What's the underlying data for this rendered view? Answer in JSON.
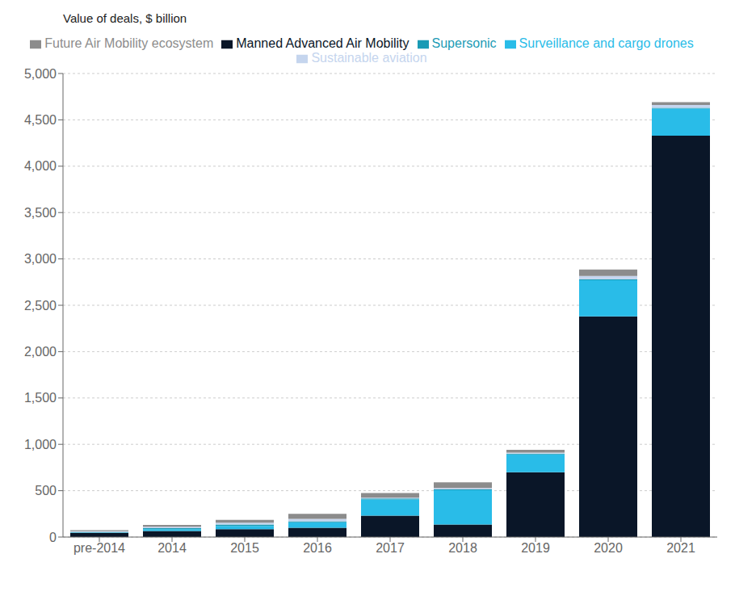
{
  "chart_data": {
    "type": "bar",
    "stacked": true,
    "ylabel": "Value of deals, $ billion",
    "categories": [
      "pre-2014",
      "2014",
      "2015",
      "2016",
      "2017",
      "2018",
      "2019",
      "2020",
      "2021"
    ],
    "series": [
      {
        "name": "Manned Advanced Air Mobility",
        "color": "#0a1628",
        "values": [
          45,
          65,
          85,
          100,
          230,
          135,
          700,
          2380,
          4330
        ]
      },
      {
        "name": "Surveillance and cargo drones",
        "color": "#29bce8",
        "values": [
          5,
          20,
          35,
          60,
          175,
          370,
          190,
          390,
          290
        ]
      },
      {
        "name": "Supersonic",
        "color": "#1a9bb5",
        "values": [
          5,
          10,
          15,
          10,
          10,
          10,
          10,
          10,
          10
        ]
      },
      {
        "name": "Sustainable aviation",
        "color": "#c5d5ee",
        "values": [
          8,
          15,
          20,
          25,
          10,
          15,
          10,
          35,
          30
        ]
      },
      {
        "name": "Future Air Mobility ecosystem",
        "color": "#8c8c8c",
        "values": [
          10,
          20,
          30,
          55,
          50,
          60,
          30,
          70,
          30
        ]
      }
    ],
    "ylim": [
      0,
      5000
    ],
    "yticks": [
      0,
      500,
      {
        "value": 1000,
        "label": "1,000"
      },
      {
        "value": 1500,
        "label": "1,500"
      },
      {
        "value": 2000,
        "label": "2,000"
      },
      {
        "value": 2500,
        "label": "2,500"
      },
      {
        "value": 3000,
        "label": "3,000"
      },
      {
        "value": 3500,
        "label": "3,500"
      },
      {
        "value": 4000,
        "label": "4,000"
      },
      {
        "value": 4500,
        "label": "4,500"
      },
      {
        "value": 5000,
        "label": "5,000"
      }
    ],
    "grid": true,
    "legend": "top"
  }
}
